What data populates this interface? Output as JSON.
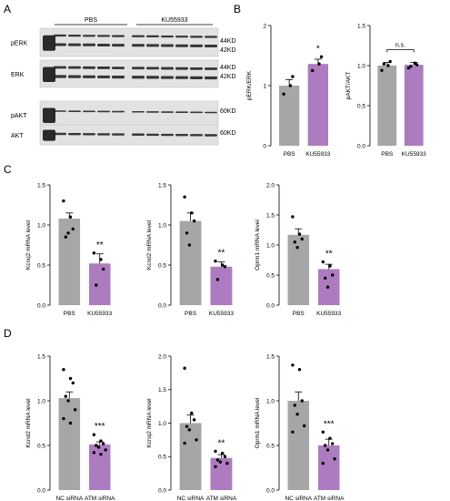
{
  "panels": {
    "A": "A",
    "B": "B",
    "C": "C",
    "D": "D"
  },
  "colors": {
    "control": "#a6a6a7",
    "treated": "#ad7bbf",
    "blot_bg": "#e2e2e2",
    "band": "#1f1f1f"
  },
  "blots": {
    "group_labels": [
      "PBS",
      "KU55933"
    ],
    "rows": [
      {
        "label": "pERK",
        "kd": [
          "44KD",
          "42KD"
        ]
      },
      {
        "label": "ERK",
        "kd": [
          "44KD",
          "42KD"
        ]
      },
      {
        "label": "pAKT",
        "kd": [
          "60KD"
        ]
      },
      {
        "label": "AKT",
        "kd": [
          "60KD"
        ]
      }
    ]
  },
  "chart_data": [
    {
      "type": "bar",
      "panel": "B",
      "categories": [
        "PBS",
        "KU55933"
      ],
      "values": [
        1.0,
        1.36
      ],
      "errors": [
        0.1,
        0.08
      ],
      "points": [
        [
          0.86,
          1.0,
          1.15
        ],
        [
          1.25,
          1.36,
          1.48
        ]
      ],
      "ylabel": "pERK/ERK",
      "ylim": [
        0,
        2
      ],
      "yticks": [
        0,
        1,
        2
      ],
      "significance": "*"
    },
    {
      "type": "bar",
      "panel": "B",
      "categories": [
        "PBS",
        "KU55933"
      ],
      "values": [
        1.0,
        1.01
      ],
      "errors": [
        0.04,
        0.03
      ],
      "points": [
        [
          0.94,
          1.0,
          1.05,
          1.02
        ],
        [
          0.97,
          1.03,
          1.01,
          0.99
        ]
      ],
      "ylabel": "pAKT/AKT",
      "ylim": [
        0,
        1.5
      ],
      "yticks": [
        0.0,
        0.5,
        1.0,
        1.5
      ],
      "significance": "n.s."
    },
    {
      "type": "bar",
      "panel": "C",
      "categories": [
        "PBS",
        "KU55933"
      ],
      "values": [
        1.08,
        0.52
      ],
      "errors": [
        0.07,
        0.12
      ],
      "points": [
        [
          1.3,
          1.1,
          0.95,
          0.85,
          0.9
        ],
        [
          0.65,
          0.57,
          0.45,
          0.25
        ]
      ],
      "ylabel": "Kcnq2 mRNA level",
      "ylim": [
        0,
        1.5
      ],
      "yticks": [
        0.0,
        0.5,
        1.0,
        1.5
      ],
      "significance": "**"
    },
    {
      "type": "bar",
      "panel": "C",
      "categories": [
        "PBS",
        "KU55933"
      ],
      "values": [
        1.05,
        0.48
      ],
      "errors": [
        0.1,
        0.06
      ],
      "points": [
        [
          1.35,
          1.15,
          1.05,
          0.9,
          0.75
        ],
        [
          0.55,
          0.5,
          0.48,
          0.32
        ]
      ],
      "ylabel": "Kcnd2 mRNA level",
      "ylim": [
        0,
        1.5
      ],
      "yticks": [
        0.0,
        0.5,
        1.0,
        1.5
      ],
      "significance": "**"
    },
    {
      "type": "bar",
      "panel": "C",
      "categories": [
        "PBS",
        "KU55933"
      ],
      "values": [
        1.17,
        0.6
      ],
      "errors": [
        0.1,
        0.08
      ],
      "points": [
        [
          1.47,
          1.18,
          1.1,
          1.05,
          0.96
        ],
        [
          0.72,
          0.65,
          0.5,
          0.45,
          0.3
        ]
      ],
      "ylabel": "Oprm1 mRNA level",
      "ylim": [
        0,
        2.0
      ],
      "yticks": [
        0.0,
        0.5,
        1.0,
        1.5,
        2.0
      ],
      "significance": "**"
    },
    {
      "type": "bar",
      "panel": "D",
      "categories": [
        "NC siRNA",
        "ATM siRNA"
      ],
      "values": [
        1.03,
        0.51
      ],
      "errors": [
        0.07,
        0.03
      ],
      "points": [
        [
          1.35,
          1.25,
          1.2,
          1.05,
          1.0,
          0.9,
          0.8,
          0.75
        ],
        [
          0.62,
          0.55,
          0.52,
          0.5,
          0.48,
          0.45,
          0.42,
          0.4
        ]
      ],
      "ylabel": "Kcnd2 mRNA level",
      "ylim": [
        0,
        1.5
      ],
      "yticks": [
        0.0,
        0.5,
        1.0,
        1.5
      ],
      "significance": "***"
    },
    {
      "type": "bar",
      "panel": "D",
      "categories": [
        "NC siRNA",
        "ATM siRNA"
      ],
      "values": [
        1.0,
        0.48
      ],
      "errors": [
        0.12,
        0.05
      ],
      "points": [
        [
          1.82,
          1.15,
          1.05,
          0.95,
          0.9,
          0.75,
          0.7
        ],
        [
          0.58,
          0.55,
          0.5,
          0.45,
          0.42,
          0.4,
          0.35
        ]
      ],
      "ylabel": "Kcnq2 mRNA level",
      "ylim": [
        0,
        2.0
      ],
      "yticks": [
        0.0,
        0.5,
        1.0,
        1.5,
        2.0
      ],
      "significance": "**"
    },
    {
      "type": "bar",
      "panel": "D",
      "categories": [
        "NC siRNA",
        "ATM siRNA"
      ],
      "values": [
        1.0,
        0.5
      ],
      "errors": [
        0.1,
        0.07
      ],
      "points": [
        [
          1.4,
          1.35,
          1.0,
          0.95,
          0.85,
          0.72,
          0.65
        ],
        [
          0.65,
          0.58,
          0.52,
          0.5,
          0.45,
          0.35,
          0.3
        ]
      ],
      "ylabel": "Oprm1 mRNA level",
      "ylim": [
        0,
        1.5
      ],
      "yticks": [
        0.0,
        0.5,
        1.0,
        1.5
      ],
      "significance": "***"
    }
  ]
}
